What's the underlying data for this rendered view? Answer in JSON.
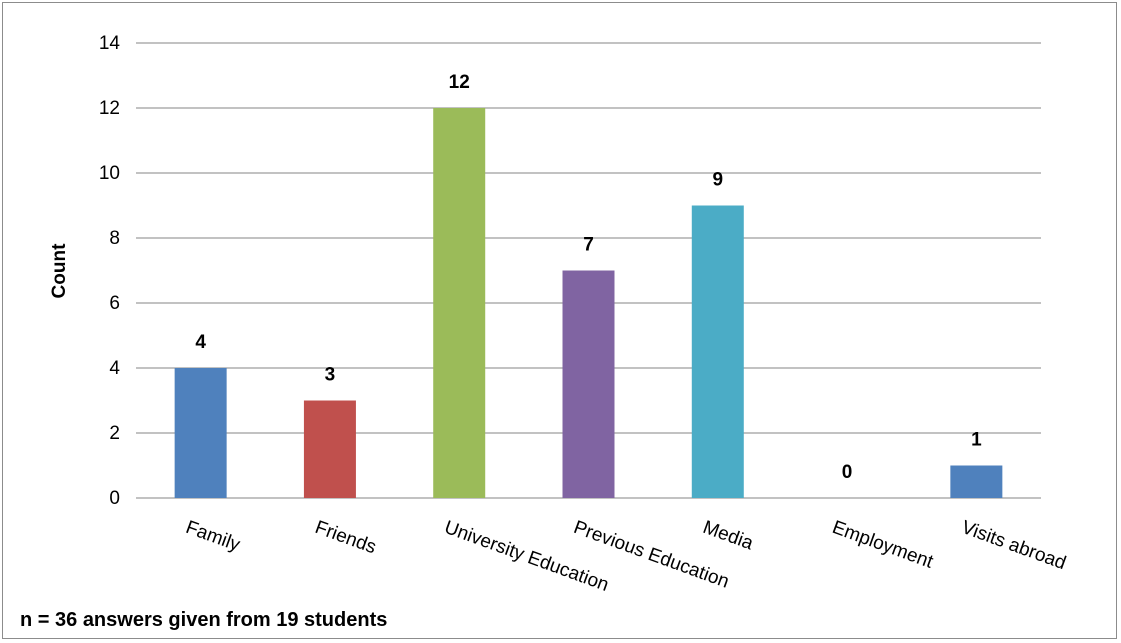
{
  "chart_data": {
    "type": "bar",
    "categories": [
      "Family",
      "Friends",
      "University Education",
      "Previous Education",
      "Media",
      "Employment",
      "Visits abroad"
    ],
    "values": [
      4,
      3,
      12,
      7,
      9,
      0,
      1
    ],
    "bar_colors": [
      "#4f81bd",
      "#c0504d",
      "#9bbb59",
      "#8064a2",
      "#4bacc6",
      "#f79646",
      "#4f81bd"
    ],
    "ylabel": "Count",
    "xlabel": "",
    "ylim": [
      0,
      14
    ],
    "y_ticks": [
      0,
      2,
      4,
      6,
      8,
      10,
      12,
      14
    ],
    "grid": true,
    "data_labels": true,
    "legend": "none",
    "note": "n = 36 answers given from 19 students"
  }
}
